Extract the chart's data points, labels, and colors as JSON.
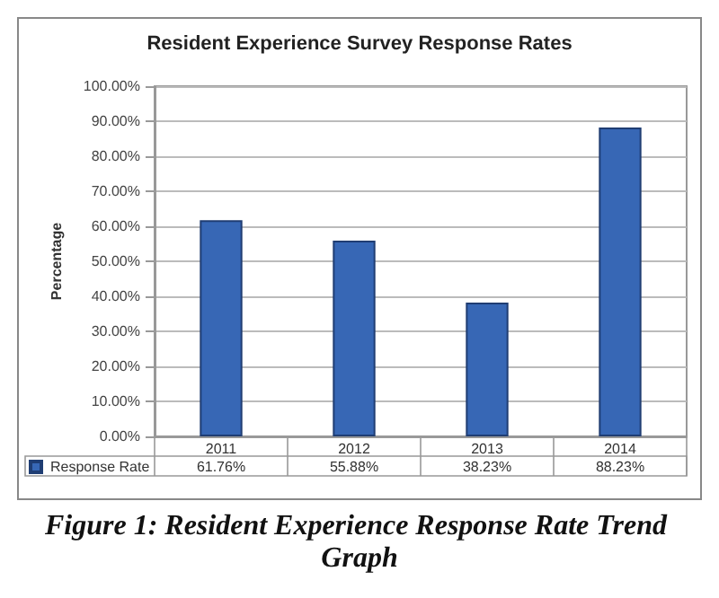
{
  "chart_data": {
    "type": "bar",
    "title": "Resident Experience Survey Response Rates",
    "ylabel": "Percentage",
    "categories": [
      "2011",
      "2012",
      "2013",
      "2014"
    ],
    "series": [
      {
        "name": "Response Rate",
        "color": "#3767b5",
        "values": [
          61.76,
          55.88,
          38.23,
          88.23
        ],
        "value_labels": [
          "61.76%",
          "55.88%",
          "38.23%",
          "88.23%"
        ]
      }
    ],
    "ylim": [
      0,
      100
    ],
    "yticks": [
      {
        "value": 0,
        "label": "0.00%"
      },
      {
        "value": 10,
        "label": "10.00%"
      },
      {
        "value": 20,
        "label": "20.00%"
      },
      {
        "value": 30,
        "label": "30.00%"
      },
      {
        "value": 40,
        "label": "40.00%"
      },
      {
        "value": 50,
        "label": "50.00%"
      },
      {
        "value": 60,
        "label": "60.00%"
      },
      {
        "value": 70,
        "label": "70.00%"
      },
      {
        "value": 80,
        "label": "80.00%"
      },
      {
        "value": 90,
        "label": "90.00%"
      },
      {
        "value": 100,
        "label": "100.00%"
      }
    ],
    "grid": "y",
    "legend": "bottom left",
    "annotations": [
      "Figure 1: Resident Experience Response Rate Trend Graph"
    ]
  }
}
